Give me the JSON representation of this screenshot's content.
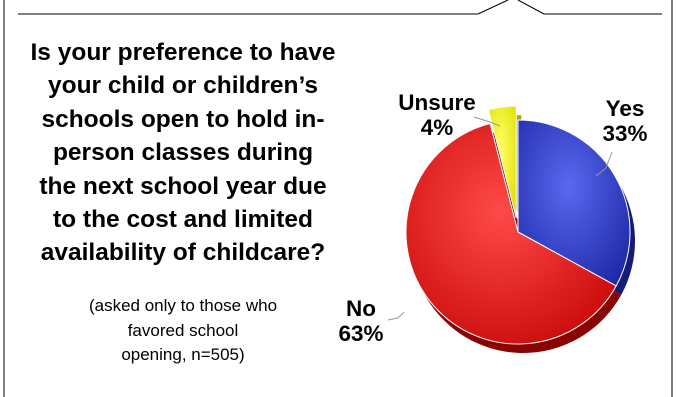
{
  "question": {
    "lines": [
      "Is your preference to have",
      "your child or children’s",
      "schools open to hold in-",
      "person classes during",
      "the next school year due",
      "to the cost and limited",
      "availability of childcare?"
    ]
  },
  "note": {
    "lines": [
      "(asked only to those who",
      "favored school",
      "opening, n=505)"
    ]
  },
  "chart_data": {
    "type": "pie",
    "title": "",
    "categories": [
      "Yes",
      "No",
      "Unsure"
    ],
    "values": [
      33,
      63,
      4
    ],
    "labels": [
      "33%",
      "63%",
      "4%"
    ],
    "colors": [
      "#2e3cc8",
      "#e81212",
      "#f5f50a"
    ],
    "exploded": [
      "Unsure"
    ]
  }
}
